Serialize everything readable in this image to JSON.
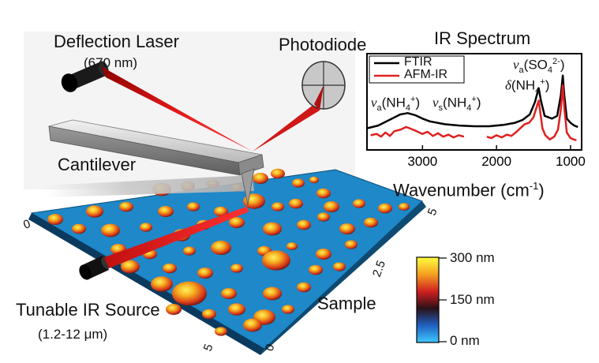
{
  "labels": {
    "deflection_laser": "Deflection Laser",
    "laser_wavelength": "(670 nm)",
    "photodiode": "Photodiode",
    "cantilever": "Cantilever",
    "tunable_ir_source": "Tunable IR Source",
    "ir_range": "(1.2-12 μm)",
    "sample": "Sample",
    "axis_tick_a": "0",
    "axis_tick_b": "2.5",
    "axis_tick_c": "5",
    "axis_tick_d": "0",
    "axis_tick_e": "5"
  },
  "colorbar": {
    "max_label": "300 nm",
    "mid_label": "150 nm",
    "min_label": "0 nm",
    "stops": [
      "#ffff40",
      "#f4a020",
      "#d02020",
      "#2a1018",
      "#2060c0",
      "#40c8ff"
    ]
  },
  "colors": {
    "laser_red": "#e01818",
    "surface_blue": "#1e88c8",
    "ftir": "#000000",
    "afm_ir": "#e02020"
  },
  "chart_data": {
    "type": "line",
    "title": "IR Spectrum",
    "xlabel": "Wavenumber (cm⁻¹)",
    "ylabel": "",
    "xlim": [
      3750,
      850
    ],
    "x_reversed": true,
    "xticks": [
      3000,
      2000,
      1000
    ],
    "legend": "top-left",
    "series": [
      {
        "name": "FTIR",
        "color": "#000000",
        "points": [
          [
            3750,
            0.22
          ],
          [
            3600,
            0.26
          ],
          [
            3450,
            0.34
          ],
          [
            3300,
            0.42
          ],
          [
            3200,
            0.44
          ],
          [
            3100,
            0.41
          ],
          [
            3000,
            0.36
          ],
          [
            2900,
            0.32
          ],
          [
            2700,
            0.28
          ],
          [
            2500,
            0.26
          ],
          [
            2300,
            0.25
          ],
          [
            2100,
            0.25
          ],
          [
            1900,
            0.27
          ],
          [
            1750,
            0.3
          ],
          [
            1650,
            0.34
          ],
          [
            1550,
            0.42
          ],
          [
            1480,
            0.6
          ],
          [
            1430,
            0.8
          ],
          [
            1400,
            0.62
          ],
          [
            1350,
            0.4
          ],
          [
            1250,
            0.36
          ],
          [
            1180,
            0.4
          ],
          [
            1130,
            0.7
          ],
          [
            1105,
            0.98
          ],
          [
            1085,
            0.7
          ],
          [
            1050,
            0.36
          ],
          [
            1000,
            0.3
          ],
          [
            950,
            0.26
          ],
          [
            900,
            0.24
          ]
        ]
      },
      {
        "name": "AFM-IR",
        "color": "#e02020",
        "segments": [
          [
            [
              3700,
              0.12
            ],
            [
              3620,
              0.14
            ],
            [
              3560,
              0.1
            ],
            [
              3500,
              0.16
            ],
            [
              3440,
              0.11
            ],
            [
              3380,
              0.18
            ],
            [
              3300,
              0.2
            ],
            [
              3220,
              0.24
            ],
            [
              3150,
              0.21
            ],
            [
              3080,
              0.18
            ],
            [
              3000,
              0.14
            ],
            [
              2930,
              0.17
            ],
            [
              2860,
              0.11
            ],
            [
              2790,
              0.15
            ],
            [
              2720,
              0.1
            ],
            [
              2650,
              0.13
            ],
            [
              2580,
              0.09
            ],
            [
              2510,
              0.12
            ],
            [
              2440,
              0.1
            ]
          ],
          [
            [
              2130,
              0.1
            ],
            [
              2070,
              0.08
            ],
            [
              2000,
              0.12
            ],
            [
              1930,
              0.09
            ],
            [
              1860,
              0.13
            ],
            [
              1800,
              0.11
            ],
            [
              1740,
              0.16
            ],
            [
              1680,
              0.22
            ],
            [
              1620,
              0.28
            ],
            [
              1560,
              0.3
            ],
            [
              1500,
              0.38
            ],
            [
              1460,
              0.52
            ],
            [
              1430,
              0.62
            ],
            [
              1410,
              0.46
            ],
            [
              1380,
              0.22
            ],
            [
              1340,
              0.12
            ],
            [
              1280,
              0.06
            ],
            [
              1220,
              0.1
            ],
            [
              1170,
              0.2
            ],
            [
              1130,
              0.5
            ],
            [
              1105,
              0.84
            ],
            [
              1085,
              0.52
            ],
            [
              1050,
              0.16
            ],
            [
              1000,
              0.08
            ],
            [
              960,
              0.06
            ],
            [
              920,
              0.05
            ]
          ]
        ]
      }
    ],
    "annotations": [
      {
        "text_main": "ν",
        "sub": "a",
        "paren": "(NH",
        "sub2": "4",
        "sup": "+",
        "close": ")"
      },
      {
        "text_main": "ν",
        "sub": "s",
        "paren": "(NH",
        "sub2": "4",
        "sup": "+",
        "close": ")"
      },
      {
        "text_main": "δ",
        "paren": "(NH",
        "sub2": "4",
        "sup": "+",
        "close": ")"
      },
      {
        "text_main": "ν",
        "sub": "a",
        "paren": "(SO",
        "sub2": "4",
        "sup": "2-",
        "close": ")"
      }
    ],
    "axis_unit_text": "Wavenumber (cm",
    "axis_unit_sup": "-1",
    "axis_unit_close": ")"
  }
}
